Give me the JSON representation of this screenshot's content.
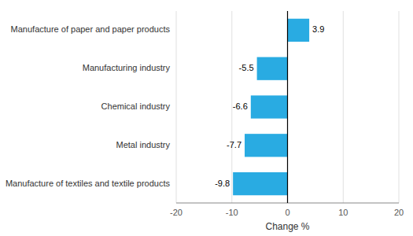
{
  "chart_data": {
    "type": "bar",
    "orientation": "horizontal",
    "categories": [
      "Manufacture of textiles and textile products",
      "Metal industry",
      "Chemical industry",
      "Manufacturing industry",
      "Manufacture of paper and paper products"
    ],
    "values": [
      -9.8,
      -7.7,
      -6.6,
      -5.5,
      3.9
    ],
    "color": "#29ABE2",
    "xlabel": "Change %",
    "xlim": [
      -20,
      20
    ],
    "xticks": [
      -20,
      -10,
      0,
      10,
      20
    ],
    "grid": true,
    "data_labels": true
  }
}
